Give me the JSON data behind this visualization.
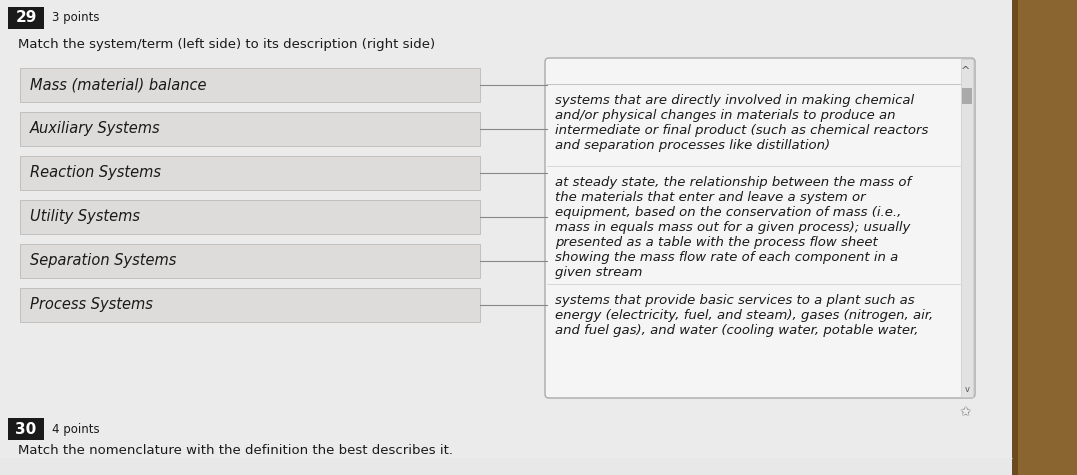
{
  "bg_color": "#b8b0a8",
  "page_bg": "#ebebeb",
  "question_number": "29",
  "points": "3 points",
  "instruction": "Match the system/term (left side) to its description (right side)",
  "left_terms": [
    "Mass (material) balance",
    "Auxiliary Systems",
    "Reaction Systems",
    "Utility Systems",
    "Separation Systems",
    "Process Systems"
  ],
  "right_descriptions": [
    "systems that are directly involved in making chemical\nand/or physical changes in materials to produce an\nintermediate or final product (such as chemical reactors\nand separation processes like distillation)",
    "at steady state, the relationship between the mass of\nthe materials that enter and leave a system or\nequipment, based on the conservation of mass (i.e.,\nmass in equals mass out for a given process); usually\npresented as a table with the process flow sheet\nshowing the mass flow rate of each component in a\ngiven stream",
    "systems that provide basic services to a plant such as\nenergy (electricity, fuel, and steam), gases (nitrogen, air,\nand fuel gas), and water (cooling water, potable water,"
  ],
  "next_question_number": "30",
  "next_points": "4 points",
  "next_instruction": "Match the nomenclature with the definition the best describes it.",
  "term_box_color": "#dddcdb",
  "term_box_edge": "#c0bfbe",
  "right_panel_bg": "#f5f5f5",
  "right_panel_edge": "#aaaaaa",
  "text_color": "#1a1a1a",
  "label_bg": "#1a1a1a",
  "label_text": "#ffffff",
  "line_color": "#888888",
  "wood_color": "#8B6914",
  "font_size_term": 10.5,
  "font_size_desc": 9.5,
  "font_size_header": 9.5,
  "font_size_label": 11,
  "font_size_points": 8.5
}
